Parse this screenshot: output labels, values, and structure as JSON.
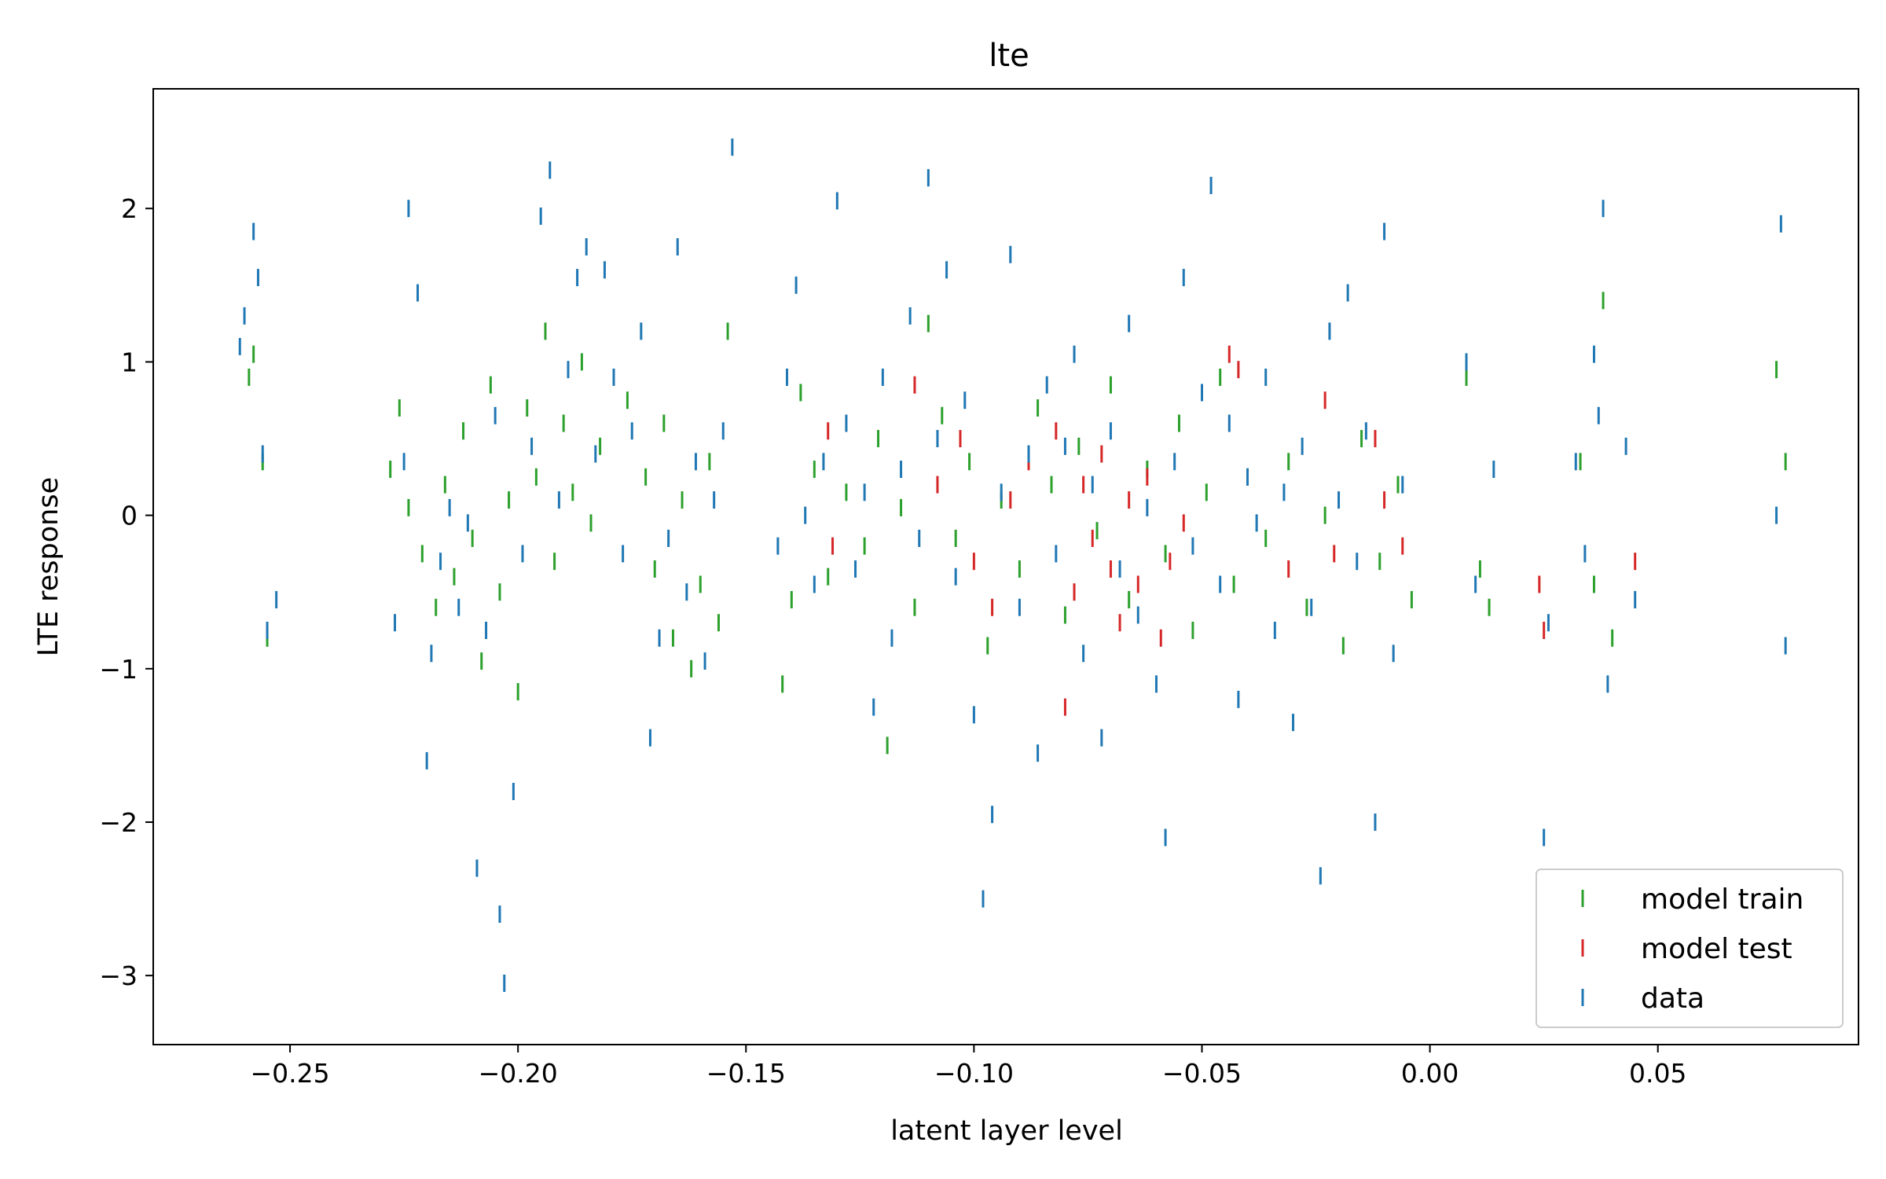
{
  "chart_data": {
    "type": "scatter",
    "title": "lte",
    "xlabel": "latent layer level",
    "ylabel": "LTE response",
    "xlim": [
      -0.28,
      0.094
    ],
    "ylim": [
      -3.45,
      2.78
    ],
    "x_ticks": [
      -0.25,
      -0.2,
      -0.15,
      -0.1,
      -0.05,
      0.0,
      0.05
    ],
    "x_tick_labels": [
      "−0.25",
      "−0.20",
      "−0.15",
      "−0.10",
      "−0.05",
      "0.00",
      "0.05"
    ],
    "y_ticks": [
      -3,
      -2,
      -1,
      0,
      1,
      2
    ],
    "y_tick_labels": [
      "−3",
      "−2",
      "−1",
      "0",
      "1",
      "2"
    ],
    "grid": false,
    "legend_position": "lower-right",
    "marker": "vertical-dash",
    "series": [
      {
        "name": "model train",
        "color": "#2ca02c",
        "x": [
          -0.259,
          -0.258,
          -0.256,
          -0.255,
          -0.228,
          -0.226,
          -0.224,
          -0.221,
          -0.218,
          -0.216,
          -0.214,
          -0.212,
          -0.21,
          -0.208,
          -0.206,
          -0.204,
          -0.202,
          -0.2,
          -0.198,
          -0.196,
          -0.194,
          -0.192,
          -0.19,
          -0.188,
          -0.186,
          -0.184,
          -0.182,
          -0.176,
          -0.172,
          -0.17,
          -0.168,
          -0.166,
          -0.164,
          -0.162,
          -0.16,
          -0.158,
          -0.156,
          -0.154,
          -0.142,
          -0.14,
          -0.138,
          -0.135,
          -0.132,
          -0.128,
          -0.124,
          -0.121,
          -0.119,
          -0.116,
          -0.113,
          -0.11,
          -0.107,
          -0.104,
          -0.101,
          -0.097,
          -0.094,
          -0.09,
          -0.086,
          -0.083,
          -0.08,
          -0.077,
          -0.073,
          -0.07,
          -0.066,
          -0.062,
          -0.058,
          -0.055,
          -0.052,
          -0.049,
          -0.046,
          -0.043,
          -0.04,
          -0.036,
          -0.031,
          -0.027,
          -0.023,
          -0.019,
          -0.015,
          -0.011,
          -0.007,
          -0.004,
          0.008,
          0.011,
          0.013,
          0.033,
          0.036,
          0.038,
          0.04,
          0.076,
          0.078
        ],
        "y": [
          0.9,
          1.05,
          0.35,
          -0.8,
          0.3,
          0.7,
          0.05,
          -0.25,
          -0.6,
          0.2,
          -0.4,
          0.55,
          -0.15,
          -0.95,
          0.85,
          -0.5,
          0.1,
          -1.15,
          0.7,
          0.25,
          1.2,
          -0.3,
          0.6,
          0.15,
          1.0,
          -0.05,
          0.45,
          0.75,
          0.25,
          -0.35,
          0.6,
          -0.8,
          0.1,
          -1.0,
          -0.45,
          0.35,
          -0.7,
          1.2,
          -1.1,
          -0.55,
          0.8,
          0.3,
          -0.4,
          0.15,
          -0.2,
          0.5,
          -1.5,
          0.05,
          -0.6,
          1.25,
          0.65,
          -0.15,
          0.35,
          -0.85,
          0.1,
          -0.35,
          0.7,
          0.2,
          -0.65,
          0.45,
          -0.1,
          0.85,
          -0.55,
          0.3,
          -0.25,
          0.6,
          -0.75,
          0.15,
          0.9,
          -0.45,
          0.25,
          -0.15,
          0.35,
          -0.6,
          0.0,
          -0.85,
          0.5,
          -0.3,
          0.2,
          -0.55,
          0.9,
          -0.35,
          -0.6,
          0.35,
          -0.45,
          1.4,
          -0.8,
          0.95,
          0.35
        ]
      },
      {
        "name": "model test",
        "color": "#d62728",
        "x": [
          -0.132,
          -0.131,
          -0.113,
          -0.108,
          -0.103,
          -0.1,
          -0.096,
          -0.092,
          -0.088,
          -0.082,
          -0.08,
          -0.078,
          -0.076,
          -0.074,
          -0.072,
          -0.07,
          -0.068,
          -0.066,
          -0.064,
          -0.062,
          -0.059,
          -0.057,
          -0.054,
          -0.044,
          -0.042,
          -0.031,
          -0.023,
          -0.021,
          -0.012,
          -0.01,
          -0.006,
          0.024,
          0.025,
          0.045
        ],
        "y": [
          0.55,
          -0.2,
          0.85,
          0.2,
          0.5,
          -0.3,
          -0.6,
          0.1,
          0.35,
          0.55,
          -1.25,
          -0.5,
          0.2,
          -0.15,
          0.4,
          -0.35,
          -0.7,
          0.1,
          -0.45,
          0.25,
          -0.8,
          -0.3,
          -0.05,
          1.05,
          0.95,
          -0.35,
          0.75,
          -0.25,
          0.5,
          0.1,
          -0.2,
          -0.45,
          -0.75,
          -0.3
        ]
      },
      {
        "name": "data",
        "color": "#1f77b4",
        "x": [
          -0.261,
          -0.26,
          -0.258,
          -0.257,
          -0.256,
          -0.255,
          -0.253,
          -0.227,
          -0.225,
          -0.224,
          -0.222,
          -0.22,
          -0.219,
          -0.217,
          -0.215,
          -0.213,
          -0.211,
          -0.209,
          -0.207,
          -0.205,
          -0.204,
          -0.203,
          -0.201,
          -0.199,
          -0.197,
          -0.195,
          -0.193,
          -0.191,
          -0.189,
          -0.187,
          -0.185,
          -0.183,
          -0.181,
          -0.179,
          -0.177,
          -0.175,
          -0.173,
          -0.171,
          -0.169,
          -0.167,
          -0.165,
          -0.163,
          -0.161,
          -0.159,
          -0.157,
          -0.155,
          -0.153,
          -0.143,
          -0.141,
          -0.139,
          -0.137,
          -0.135,
          -0.133,
          -0.13,
          -0.128,
          -0.126,
          -0.124,
          -0.122,
          -0.12,
          -0.118,
          -0.116,
          -0.114,
          -0.112,
          -0.11,
          -0.108,
          -0.106,
          -0.104,
          -0.102,
          -0.1,
          -0.098,
          -0.096,
          -0.094,
          -0.092,
          -0.09,
          -0.088,
          -0.086,
          -0.084,
          -0.082,
          -0.08,
          -0.078,
          -0.076,
          -0.074,
          -0.072,
          -0.07,
          -0.068,
          -0.066,
          -0.064,
          -0.062,
          -0.06,
          -0.058,
          -0.056,
          -0.054,
          -0.052,
          -0.05,
          -0.048,
          -0.046,
          -0.044,
          -0.042,
          -0.04,
          -0.038,
          -0.036,
          -0.034,
          -0.032,
          -0.03,
          -0.028,
          -0.026,
          -0.024,
          -0.022,
          -0.02,
          -0.018,
          -0.016,
          -0.014,
          -0.012,
          -0.01,
          -0.008,
          -0.006,
          0.008,
          0.01,
          0.014,
          0.025,
          0.026,
          0.032,
          0.034,
          0.036,
          0.037,
          0.038,
          0.039,
          0.043,
          0.045,
          0.076,
          0.077,
          0.078
        ],
        "y": [
          1.1,
          1.3,
          1.85,
          1.55,
          0.4,
          -0.75,
          -0.55,
          -0.7,
          0.35,
          2.0,
          1.45,
          -1.6,
          -0.9,
          -0.3,
          0.05,
          -0.6,
          -0.05,
          -2.3,
          -0.75,
          0.65,
          -2.6,
          -3.05,
          -1.8,
          -0.25,
          0.45,
          1.95,
          2.25,
          0.1,
          0.95,
          1.55,
          1.75,
          0.4,
          1.6,
          0.9,
          -0.25,
          0.55,
          1.2,
          -1.45,
          -0.8,
          -0.15,
          1.75,
          -0.5,
          0.35,
          -0.95,
          0.1,
          0.55,
          2.4,
          -0.2,
          0.9,
          1.5,
          0.0,
          -0.45,
          0.35,
          2.05,
          0.6,
          -0.35,
          0.15,
          -1.25,
          0.9,
          -0.8,
          0.3,
          1.3,
          -0.15,
          2.2,
          0.5,
          1.6,
          -0.4,
          0.75,
          -1.3,
          -2.5,
          -1.95,
          0.15,
          1.7,
          -0.6,
          0.4,
          -1.55,
          0.85,
          -0.25,
          0.45,
          1.05,
          -0.9,
          0.2,
          -1.45,
          0.55,
          -0.35,
          1.25,
          -0.65,
          0.05,
          -1.1,
          -2.1,
          0.35,
          1.55,
          -0.2,
          0.8,
          2.15,
          -0.45,
          0.6,
          -1.2,
          0.25,
          -0.05,
          0.9,
          -0.75,
          0.15,
          -1.35,
          0.45,
          -0.6,
          -2.35,
          1.2,
          0.1,
          1.45,
          -0.3,
          0.55,
          -2.0,
          1.85,
          -0.9,
          0.2,
          1.0,
          -0.45,
          0.3,
          -2.1,
          -0.7,
          0.35,
          -0.25,
          1.05,
          0.65,
          2.0,
          -1.1,
          0.45,
          -0.55,
          0.0,
          1.9,
          -0.85
        ]
      }
    ]
  }
}
